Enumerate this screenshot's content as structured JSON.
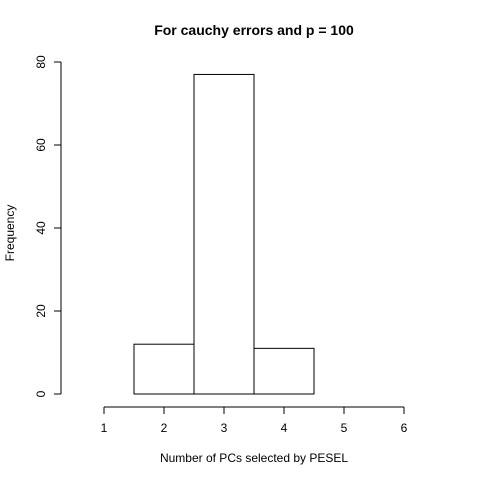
{
  "chart_data": {
    "type": "bar",
    "title": "For cauchy errors and p = 100",
    "xlabel": "Number of PCs selected by PESEL",
    "ylabel": "Frequency",
    "xlim": [
      0.5,
      6.5
    ],
    "ylim": [
      0,
      80
    ],
    "x_ticks": [
      "1",
      "2",
      "3",
      "4",
      "5",
      "6"
    ],
    "y_ticks": [
      "0",
      "20",
      "40",
      "60",
      "80"
    ],
    "bins": [
      {
        "left": 1.5,
        "right": 2.5,
        "value": 12
      },
      {
        "left": 2.5,
        "right": 3.5,
        "value": 77
      },
      {
        "left": 3.5,
        "right": 4.5,
        "value": 11
      },
      {
        "left": 4.5,
        "right": 5.5,
        "value": 0
      },
      {
        "left": 5.5,
        "right": 6.5,
        "value": 0
      }
    ],
    "grid": false,
    "bar_fill": "#ffffff",
    "bar_stroke": "#000000"
  }
}
